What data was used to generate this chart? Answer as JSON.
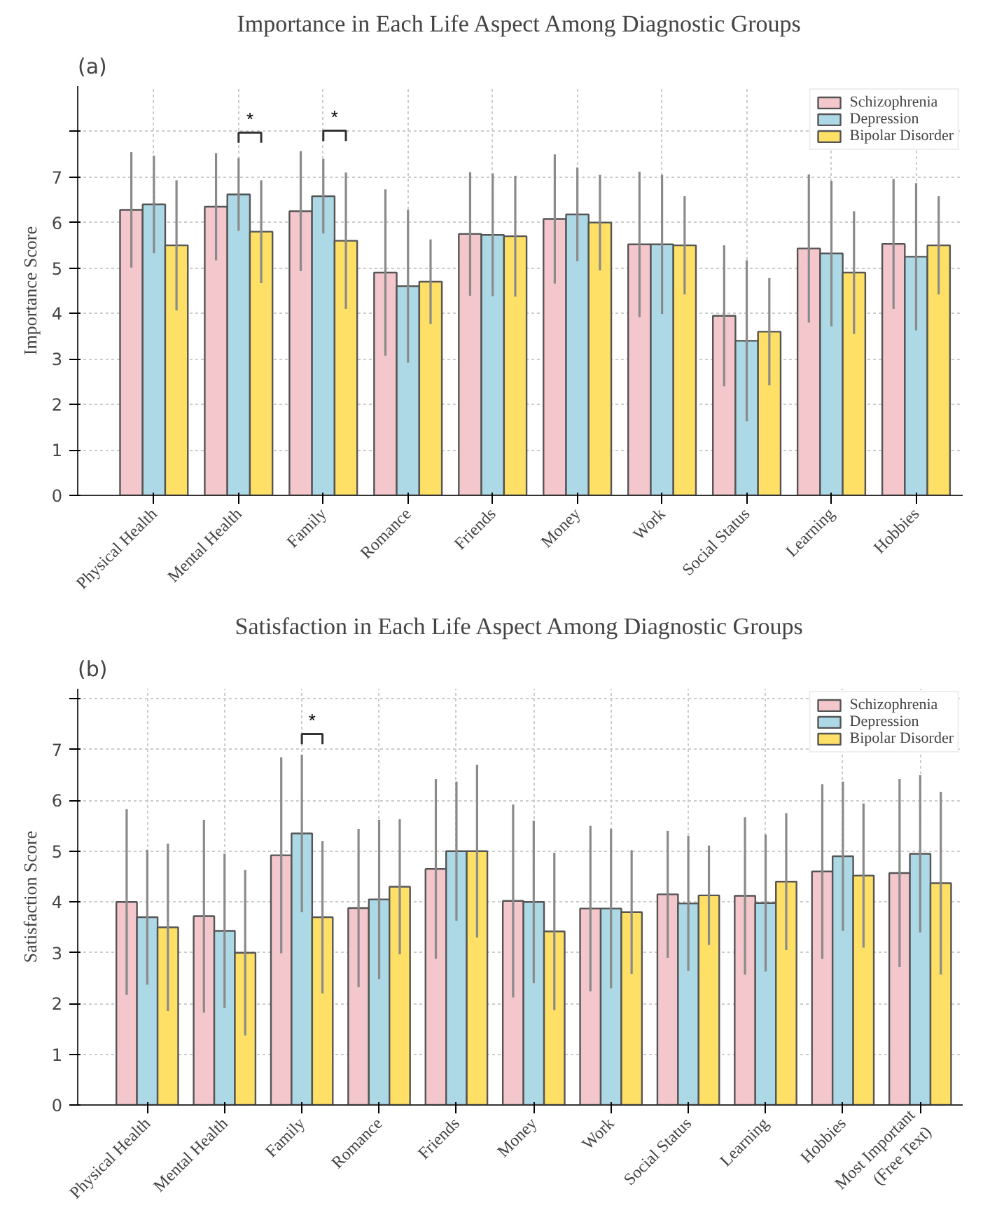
{
  "chart_data": [
    {
      "type": "bar",
      "title": "Importance in Each Life Aspect Among Diagnostic Groups",
      "ylabel": "Importance Score",
      "annotations": [
        "(a)",
        "*",
        "*"
      ],
      "categories": [
        "Physical Health",
        "Mental Health",
        "Family",
        "Romance",
        "Friends",
        "Money",
        "Work",
        "Social Status",
        "Learning",
        "Hobbies"
      ],
      "series": [
        {
          "name": "Schizophrenia",
          "color": "#f4c7cc",
          "values": [
            6.28,
            6.35,
            6.25,
            4.9,
            5.75,
            6.08,
            5.52,
            3.95,
            5.43,
            5.53
          ],
          "errors": [
            1.27,
            1.18,
            1.32,
            1.83,
            1.36,
            1.42,
            1.6,
            1.55,
            1.63,
            1.43
          ]
        },
        {
          "name": "Depression",
          "color": "#add8e6",
          "values": [
            6.4,
            6.62,
            6.58,
            4.6,
            5.73,
            6.18,
            5.52,
            3.4,
            5.32,
            5.25
          ],
          "errors": [
            1.07,
            0.8,
            0.82,
            1.68,
            1.35,
            1.03,
            1.53,
            1.77,
            1.6,
            1.62
          ]
        },
        {
          "name": "Bipolar Disorder",
          "color": "#ffe066",
          "values": [
            5.5,
            5.8,
            5.6,
            4.7,
            5.7,
            6.0,
            5.5,
            3.6,
            4.9,
            5.5
          ],
          "errors": [
            1.43,
            1.13,
            1.5,
            0.93,
            1.33,
            1.05,
            1.08,
            1.18,
            1.35,
            1.08
          ]
        }
      ],
      "ylim": [
        0,
        9
      ],
      "yticks": [
        0,
        1,
        2,
        3,
        4,
        5,
        6,
        7,
        {
          "value": 8,
          "label": null
        }
      ],
      "grid": true,
      "legend": "top right"
    },
    {
      "type": "bar",
      "title": "Satisfaction in Each Life Aspect Among Diagnostic Groups",
      "ylabel": "Satisfaction Score",
      "annotations": [
        "(b)",
        "*"
      ],
      "categories": [
        "Physical Health",
        "Mental Health",
        "Family",
        "Romance",
        "Friends",
        "Money",
        "Work",
        "Social Status",
        "Learning",
        "Hobbies",
        "Most Important (Free Text)"
      ],
      "series": [
        {
          "name": "Schizophrenia",
          "color": "#f4c7cc",
          "values": [
            4.0,
            3.72,
            4.92,
            3.88,
            4.65,
            4.02,
            3.87,
            4.15,
            4.12,
            4.6,
            4.57
          ],
          "errors": [
            1.83,
            1.9,
            1.93,
            1.56,
            1.77,
            1.9,
            1.63,
            1.25,
            1.55,
            1.72,
            1.85
          ]
        },
        {
          "name": "Depression",
          "color": "#add8e6",
          "values": [
            3.7,
            3.43,
            5.35,
            4.05,
            5.0,
            4.0,
            3.87,
            3.97,
            3.98,
            4.9,
            4.95
          ],
          "errors": [
            1.33,
            1.52,
            1.55,
            1.57,
            1.37,
            1.6,
            1.57,
            1.33,
            1.35,
            1.47,
            1.55
          ]
        },
        {
          "name": "Bipolar Disorder",
          "color": "#ffe066",
          "values": [
            3.5,
            3.0,
            3.7,
            4.3,
            5.0,
            3.42,
            3.8,
            4.13,
            4.4,
            4.52,
            4.37
          ],
          "errors": [
            1.65,
            1.63,
            1.5,
            1.33,
            1.7,
            1.55,
            1.22,
            0.98,
            1.35,
            1.42,
            1.8
          ]
        }
      ],
      "ylim": [
        0,
        8.2
      ],
      "yticks": [
        0,
        1,
        2,
        3,
        4,
        5,
        6,
        7,
        {
          "value": 8,
          "label": null
        }
      ],
      "grid": true,
      "legend": "top right"
    }
  ]
}
